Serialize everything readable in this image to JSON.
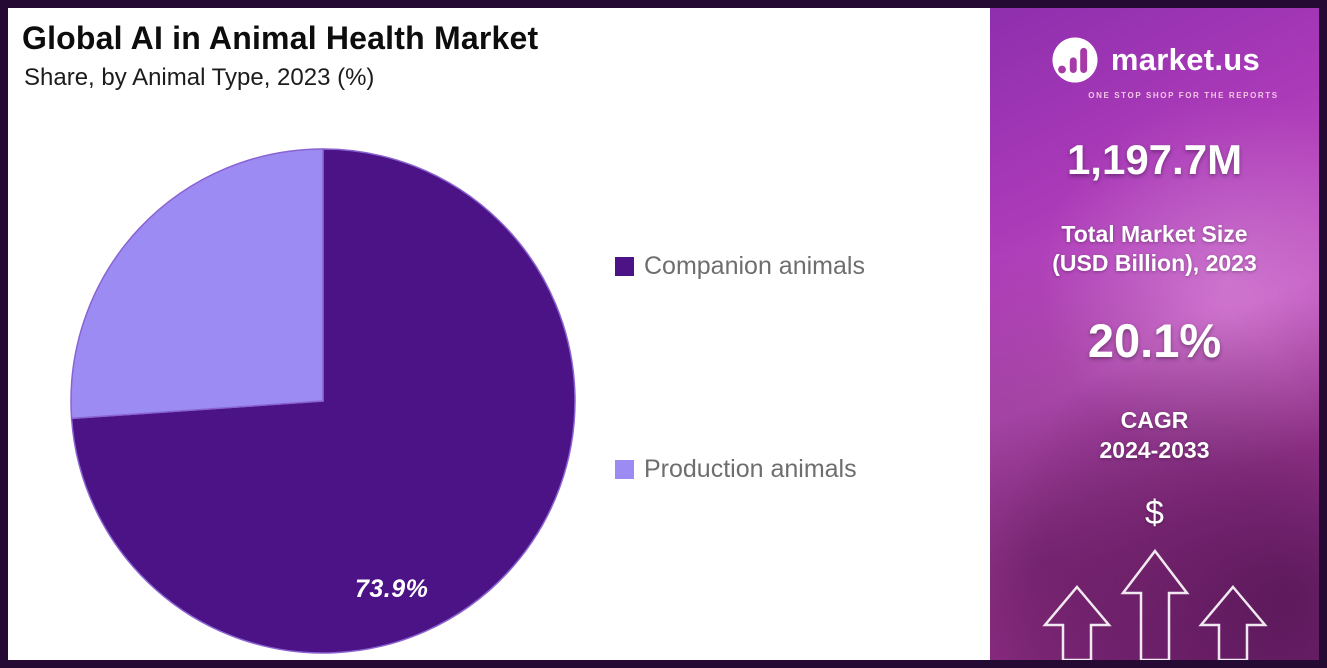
{
  "chart": {
    "title": "Global AI in Animal Health Market",
    "subtitle": "Share, by Animal Type, 2023 (%)"
  },
  "chart_data": {
    "type": "pie",
    "title": "Global AI in Animal Health Market",
    "subtitle": "Share, by Animal Type, 2023 (%)",
    "categories": [
      "Companion animals",
      "Production animals"
    ],
    "values": [
      73.9,
      26.1
    ],
    "colors": [
      "#4b1385",
      "#9d8bf4"
    ],
    "data_labels": [
      "73.9%",
      ""
    ],
    "start_angle": "top",
    "direction": "clockwise",
    "legend_position": "right"
  },
  "sidebar": {
    "logo_text": "market.us",
    "logo_tagline": "ONE STOP SHOP FOR THE REPORTS",
    "market_size_value": "1,197.7M",
    "market_size_label_line1": "Total Market Size",
    "market_size_label_line2": "(USD Billion), 2023",
    "cagr_value": "20.1%",
    "cagr_label_line1": "CAGR",
    "cagr_label_line2": "2024-2033",
    "currency_symbol": "$"
  }
}
